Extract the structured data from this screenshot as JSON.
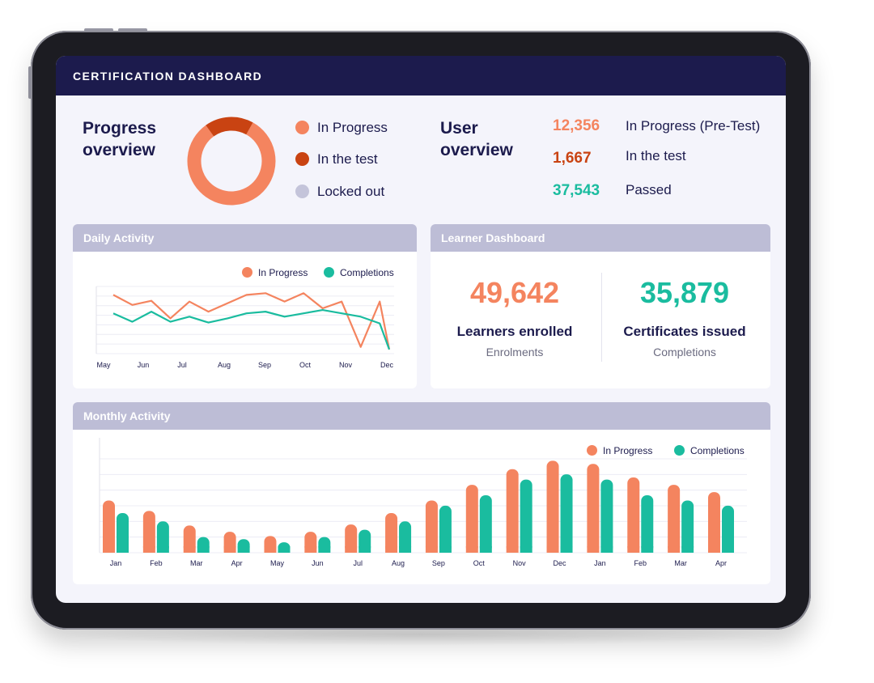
{
  "header": {
    "title": "CERTIFICATION DASHBOARD"
  },
  "colors": {
    "orange": "#f4845f",
    "dark_orange": "#c94312",
    "teal": "#1abc9f",
    "lavender": "#bdbdd6",
    "navy": "#1c1b4d"
  },
  "progress_overview": {
    "title_line1": "Progress",
    "title_line2": "overview",
    "legend": [
      {
        "label": "In Progress",
        "color": "#f4845f"
      },
      {
        "label": "In the test",
        "color": "#c94312"
      },
      {
        "label": "Locked out",
        "color": "#c4c4da"
      }
    ],
    "donut": [
      {
        "label": "In Progress",
        "value": 82
      },
      {
        "label": "In the test",
        "value": 18
      },
      {
        "label": "Locked out",
        "value": 0
      }
    ]
  },
  "user_overview": {
    "title_line1": "User",
    "title_line2": "overview",
    "rows": [
      {
        "value": "12,356",
        "label": "In Progress (Pre-Test)",
        "color": "#f4845f"
      },
      {
        "value": "1,667",
        "label": "In the test",
        "color": "#c94312"
      },
      {
        "value": "37,543",
        "label": "Passed",
        "color": "#1abc9f"
      }
    ]
  },
  "daily_activity": {
    "title": "Daily Activity",
    "legend": [
      "In Progress",
      "Completions"
    ]
  },
  "learner_dashboard": {
    "title": "Learner Dashboard",
    "enrolled": {
      "value": "49,642",
      "label": "Learners enrolled",
      "sub": "Enrolments"
    },
    "certificates": {
      "value": "35,879",
      "label": "Certificates issued",
      "sub": "Completions"
    }
  },
  "monthly_activity": {
    "title": "Monthly Activity",
    "legend": [
      "In Progress",
      "Completions"
    ]
  },
  "chart_data": [
    {
      "type": "line",
      "categories": [
        "May",
        "Jun",
        "Jul",
        "Aug",
        "Sep",
        "Oct",
        "Nov",
        "Dec"
      ],
      "x": [
        0,
        0.5,
        1,
        1.5,
        2,
        2.5,
        3,
        3.5,
        4,
        4.5,
        5,
        5.5,
        6,
        6.5,
        7,
        7.25
      ],
      "series": [
        {
          "name": "In Progress",
          "values": [
            70,
            58,
            63,
            42,
            62,
            50,
            60,
            70,
            72,
            62,
            72,
            54,
            62,
            8,
            62,
            5
          ]
        },
        {
          "name": "Completions",
          "values": [
            48,
            38,
            50,
            38,
            44,
            37,
            42,
            48,
            50,
            44,
            48,
            52,
            48,
            44,
            36,
            5
          ]
        }
      ],
      "ylim": [
        0,
        80
      ],
      "grid": true,
      "legend_position": "top-right"
    },
    {
      "type": "bar",
      "categories": [
        "Jan",
        "Feb",
        "Mar",
        "Apr",
        "May",
        "Jun",
        "Jul",
        "Aug",
        "Sep",
        "Oct",
        "Nov",
        "Dec",
        "Jan",
        "Feb",
        "Mar",
        "Apr"
      ],
      "series": [
        {
          "name": "In Progress",
          "values": [
            50,
            40,
            26,
            20,
            16,
            20,
            27,
            38,
            50,
            65,
            80,
            88,
            85,
            72,
            65,
            58
          ]
        },
        {
          "name": "Completions",
          "values": [
            38,
            30,
            15,
            13,
            10,
            15,
            22,
            30,
            45,
            55,
            70,
            75,
            70,
            55,
            50,
            45
          ]
        }
      ],
      "ylim": [
        0,
        110
      ],
      "grid": true,
      "legend_position": "top-right"
    }
  ]
}
